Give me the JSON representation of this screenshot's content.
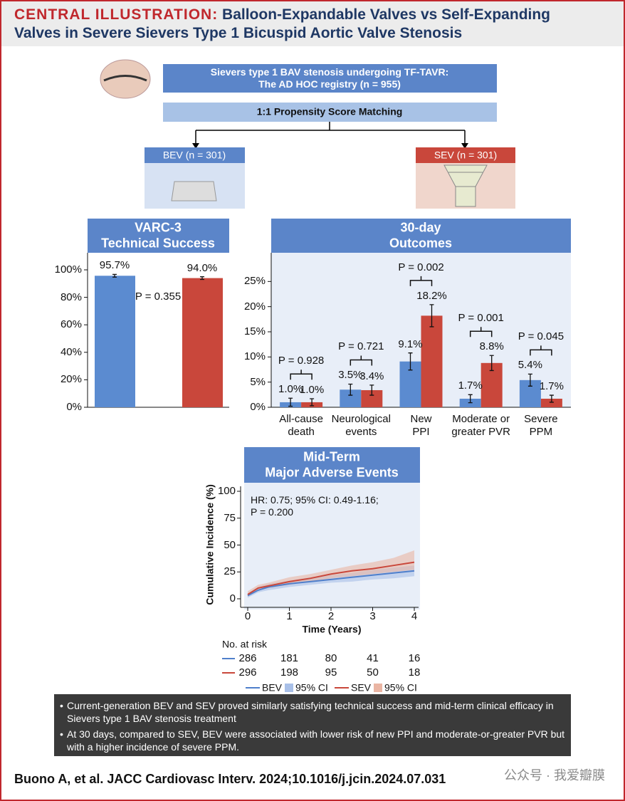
{
  "header": {
    "kicker": "CENTRAL ILLUSTRATION:",
    "title": "Balloon-Expandable Valves vs Self-Expanding\nValves in Severe Sievers Type 1 Bicuspid Aortic Valve Stenosis"
  },
  "flow": {
    "population": "Sievers type 1 BAV stenosis undergoing TF-TAVR:\nThe AD HOC registry (n = 955)",
    "matching": "1:1 Propensity Score Matching",
    "arms": [
      "BEV (n = 301)",
      "SEV (n = 301)"
    ]
  },
  "chart_data": [
    {
      "type": "bar",
      "title": "VARC-3\nTechnical Success",
      "categories": [
        null,
        null
      ],
      "values": [
        95.7,
        94.0
      ],
      "value_labels": [
        "95.7%",
        "94.0%"
      ],
      "errors": [
        1.0,
        1.0
      ],
      "colors": [
        "#5b8bd0",
        "#c9473b"
      ],
      "annotation": "P = 0.355",
      "ylim": [
        0,
        100
      ],
      "yticks": [
        {
          "value": 0,
          "label": "0%"
        },
        {
          "value": 20,
          "label": "20%"
        },
        {
          "value": 40,
          "label": "40%"
        },
        {
          "value": 60,
          "label": "60%"
        },
        {
          "value": 80,
          "label": "80%"
        },
        {
          "value": 100,
          "label": "100%"
        }
      ]
    },
    {
      "type": "grouped_bar",
      "title": "30-day\nOutcomes",
      "categories": [
        "All-cause\ndeath",
        "Neurological\nevents",
        "New\nPPI",
        "Moderate or\ngreater PVR",
        "Severe\nPPM"
      ],
      "series": [
        {
          "color": "#5b8bd0",
          "values": [
            1.0,
            3.5,
            9.1,
            1.7,
            5.4
          ],
          "value_labels": [
            "1.0%",
            "3.5%",
            "9.1%",
            "1.7%",
            "5.4%"
          ],
          "errors": [
            0.8,
            1.1,
            1.7,
            0.8,
            1.2
          ]
        },
        {
          "color": "#c9473b",
          "values": [
            1.0,
            3.4,
            18.2,
            8.8,
            1.7
          ],
          "value_labels": [
            "1.0%",
            "3.4%",
            "18.2%",
            "8.8%",
            "1.7%"
          ],
          "errors": [
            0.7,
            1.0,
            2.2,
            1.5,
            0.7
          ]
        }
      ],
      "annotations": [
        "P = 0.928",
        "P = 0.721",
        "P = 0.002",
        "P = 0.001",
        "P = 0.045"
      ],
      "ylim": [
        0,
        30
      ],
      "yticks": [
        {
          "value": 0,
          "label": "0%"
        },
        {
          "value": 5,
          "label": "5%"
        },
        {
          "value": 10,
          "label": "10%"
        },
        {
          "value": 15,
          "label": "15%"
        },
        {
          "value": 20,
          "label": "20%"
        },
        {
          "value": 25,
          "label": "25%"
        }
      ]
    },
    {
      "type": "line",
      "title": "Mid-Term\nMajor Adverse Events",
      "annotation": "HR: 0.75; 95% CI: 0.49-1.16;\nP = 0.200",
      "xlabel": "Time (Years)",
      "ylabel": "Cumulative Incidence (%)",
      "xlim": [
        0,
        4
      ],
      "xticks": [
        0,
        1,
        2,
        3,
        4
      ],
      "ylim": [
        0,
        100
      ],
      "yticks": [
        0,
        25,
        50,
        75,
        100
      ],
      "risk_title": "No. at risk",
      "x": [
        0,
        0.25,
        0.5,
        1,
        1.5,
        2,
        2.5,
        3,
        3.5,
        4
      ],
      "series": [
        {
          "name": "BEV",
          "color": "#4f7fcb",
          "ci_color": "#a9c0e8",
          "ci_name": "95% CI",
          "values": [
            3,
            8,
            11,
            14,
            16,
            18,
            20,
            22,
            24,
            26
          ],
          "lower": [
            1,
            6,
            8,
            11,
            13,
            15,
            16,
            18,
            19,
            21
          ],
          "upper": [
            5,
            11,
            14,
            17,
            20,
            22,
            24,
            27,
            29,
            31
          ],
          "at_risk": [
            286,
            181,
            80,
            41,
            16
          ]
        },
        {
          "name": "SEV",
          "color": "#c9473b",
          "ci_color": "#eab5a3",
          "ci_name": "95% CI",
          "values": [
            4,
            10,
            12,
            16,
            19,
            23,
            26,
            28,
            31,
            34
          ],
          "lower": [
            2,
            8,
            10,
            13,
            16,
            19,
            21,
            23,
            25,
            27
          ],
          "upper": [
            7,
            13,
            15,
            20,
            23,
            27,
            31,
            34,
            38,
            45
          ],
          "at_risk": [
            296,
            198,
            95,
            50,
            18
          ]
        }
      ]
    }
  ],
  "notes": [
    "Current-generation BEV and SEV proved similarly satisfying technical success and mid-term clinical efficacy in Sievers type 1 BAV stenosis treatment",
    "At 30 days, compared to SEV, BEV were associated with lower risk of new PPI and moderate-or-greater PVR but with a higher incidence of severe PPM."
  ],
  "citation": "Buono A, et al. JACC Cardiovasc Interv. 2024;10.1016/j.jcin.2024.07.031",
  "watermark": "公众号 · 我爱瓣膜"
}
